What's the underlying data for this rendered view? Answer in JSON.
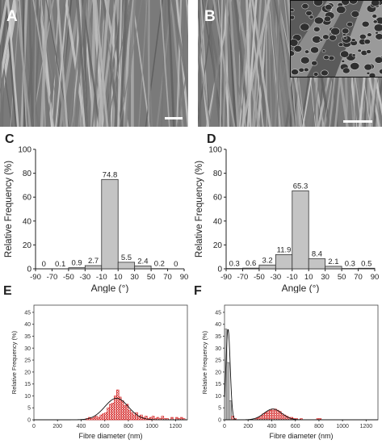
{
  "panels": {
    "A": "A",
    "B": "B"
  },
  "chart_data": [
    {
      "id": "C",
      "type": "bar",
      "panel_label": "C",
      "xlabel": "Angle (°)",
      "ylabel": "Relative Frequency (%)",
      "ylim": [
        0,
        100
      ],
      "yticks": [
        0,
        20,
        40,
        60,
        80,
        100
      ],
      "xticks": [
        -90,
        -70,
        -50,
        -30,
        -10,
        10,
        30,
        50,
        70,
        90
      ],
      "bins": [
        [
          -90,
          -70
        ],
        [
          -70,
          -50
        ],
        [
          -50,
          -30
        ],
        [
          -30,
          -10
        ],
        [
          -10,
          10
        ],
        [
          10,
          30
        ],
        [
          30,
          50
        ],
        [
          50,
          70
        ],
        [
          70,
          90
        ]
      ],
      "values": [
        0,
        0.1,
        0.9,
        2.7,
        74.8,
        5.5,
        2.4,
        0.2,
        0
      ],
      "value_labels": [
        "0",
        "0.1",
        "0.9",
        "2.7",
        "74.8",
        "5.5",
        "2.4",
        "0.2",
        "0"
      ]
    },
    {
      "id": "D",
      "type": "bar",
      "panel_label": "D",
      "xlabel": "Angle (°)",
      "ylabel": "Relative Frequency (%)",
      "ylim": [
        0,
        100
      ],
      "yticks": [
        0,
        20,
        40,
        60,
        80,
        100
      ],
      "xticks": [
        -90,
        -70,
        -50,
        -30,
        -10,
        10,
        30,
        50,
        70,
        90
      ],
      "bins": [
        [
          -90,
          -70
        ],
        [
          -70,
          -50
        ],
        [
          -50,
          -30
        ],
        [
          -30,
          -10
        ],
        [
          -10,
          10
        ],
        [
          10,
          30
        ],
        [
          30,
          50
        ],
        [
          50,
          70
        ],
        [
          70,
          90
        ]
      ],
      "values": [
        0.3,
        0.6,
        3.2,
        11.9,
        65.3,
        8.4,
        2.1,
        0.3,
        0.5
      ],
      "value_labels": [
        "0.3",
        "0.6",
        "3.2",
        "11.9",
        "65.3",
        "8.4",
        "2.1",
        "0.3",
        "0.5"
      ]
    },
    {
      "id": "E",
      "type": "bar",
      "panel_label": "E",
      "xlabel": "Fibre diameter (nm)",
      "ylabel": "Relative Frequency (%)",
      "xlim": [
        0,
        1300
      ],
      "ylim": [
        0,
        48
      ],
      "xticks": [
        0,
        200,
        400,
        600,
        800,
        1000,
        1200
      ],
      "yticks": [
        0,
        5,
        10,
        15,
        20,
        25,
        30,
        35,
        40,
        45
      ],
      "bin_width": 20,
      "bin_starts": [
        440,
        460,
        480,
        500,
        520,
        540,
        560,
        580,
        600,
        620,
        640,
        660,
        680,
        700,
        720,
        740,
        760,
        780,
        800,
        820,
        840,
        860,
        880,
        900,
        920,
        940,
        960,
        980,
        1000,
        1020,
        1040,
        1060,
        1080,
        1100,
        1120,
        1140,
        1160,
        1180,
        1200,
        1220,
        1240,
        1260
      ],
      "values": [
        0.5,
        1,
        0.5,
        1,
        1.5,
        1,
        2,
        2.5,
        3,
        5,
        6.5,
        7,
        10,
        12.5,
        9.5,
        8,
        6,
        6.5,
        4,
        3,
        2,
        3,
        1.5,
        2,
        1,
        1.5,
        0.5,
        1,
        1.5,
        0.5,
        1,
        0.5,
        1.5,
        0.5,
        0.5,
        0,
        1,
        0,
        1,
        0.5,
        1,
        0.5
      ],
      "fit": {
        "type": "gaussian",
        "mean": 700,
        "sigma": 100,
        "peak": 9
      }
    },
    {
      "id": "F",
      "type": "bar",
      "panel_label": "F",
      "xlabel": "Fibre diameter (nm)",
      "ylabel": "Relative Frequency (%)",
      "xlim": [
        0,
        1300
      ],
      "ylim": [
        0,
        48
      ],
      "xticks": [
        0,
        200,
        400,
        600,
        800,
        1000,
        1200
      ],
      "yticks": [
        0,
        5,
        10,
        15,
        20,
        25,
        30,
        35,
        40,
        45
      ],
      "bin_width": 20,
      "bin_starts": [
        0,
        20,
        40,
        60,
        80,
        260,
        280,
        300,
        320,
        340,
        360,
        380,
        400,
        420,
        440,
        460,
        480,
        500,
        520,
        540,
        560,
        580,
        600,
        640,
        780,
        800
      ],
      "values": [
        38,
        24,
        8,
        1.5,
        0.5,
        0.5,
        1,
        1.5,
        2.5,
        3,
        3.5,
        4,
        4.5,
        4.5,
        4,
        3.5,
        2.5,
        2,
        1.5,
        1,
        1,
        0.5,
        0.5,
        0.5,
        0.5,
        0.5
      ],
      "fits": [
        {
          "type": "gaussian",
          "mean": 30,
          "sigma": 18,
          "peak": 38
        },
        {
          "type": "gaussian",
          "mean": 410,
          "sigma": 75,
          "peak": 4.5
        }
      ]
    }
  ]
}
